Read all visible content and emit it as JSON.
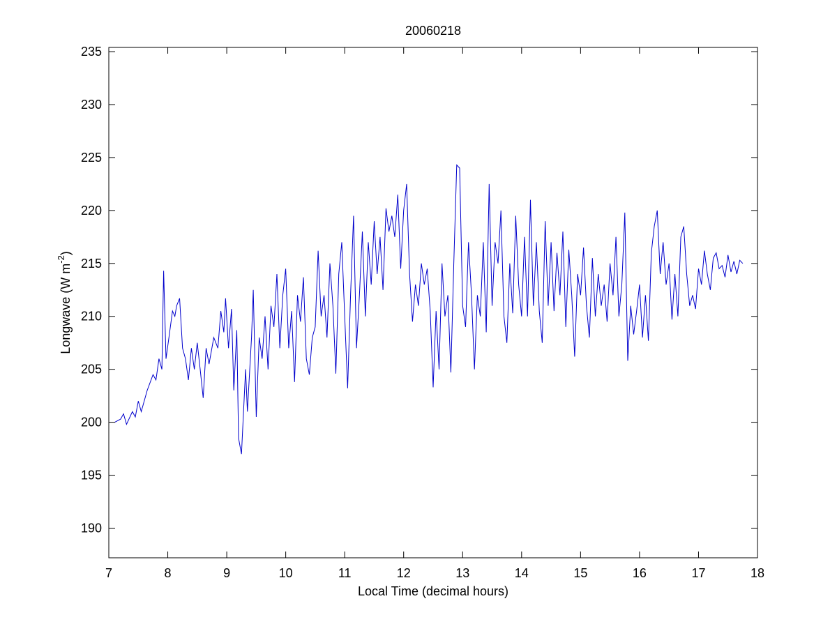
{
  "chart_data": {
    "type": "line",
    "title": "20060218",
    "xlabel": "Local Time (decimal hours)",
    "ylabel": {
      "text": "Longwave (W m",
      "superscript": "-2",
      "end": ")"
    },
    "xlim": [
      7,
      18
    ],
    "xticks": [
      7,
      8,
      9,
      10,
      11,
      12,
      13,
      14,
      15,
      16,
      17,
      18
    ],
    "ylim": [
      187.2,
      235.4
    ],
    "yticks": [
      190,
      195,
      200,
      205,
      210,
      215,
      220,
      225,
      230,
      235
    ],
    "box": true,
    "series": [
      {
        "color": "#0000cc",
        "x": [
          7.1,
          7.2,
          7.25,
          7.3,
          7.4,
          7.45,
          7.5,
          7.55,
          7.65,
          7.75,
          7.8,
          7.85,
          7.9,
          7.93,
          7.97,
          8.02,
          8.08,
          8.12,
          8.15,
          8.2,
          8.25,
          8.3,
          8.35,
          8.4,
          8.45,
          8.5,
          8.55,
          8.6,
          8.65,
          8.7,
          8.78,
          8.85,
          8.9,
          8.95,
          8.98,
          9.03,
          9.08,
          9.12,
          9.17,
          9.2,
          9.25,
          9.32,
          9.35,
          9.42,
          9.45,
          9.5,
          9.55,
          9.6,
          9.65,
          9.7,
          9.75,
          9.8,
          9.85,
          9.9,
          9.95,
          10.0,
          10.05,
          10.1,
          10.15,
          10.2,
          10.25,
          10.3,
          10.35,
          10.4,
          10.45,
          10.5,
          10.55,
          10.6,
          10.65,
          10.7,
          10.75,
          10.8,
          10.85,
          10.9,
          10.95,
          11.0,
          11.05,
          11.1,
          11.15,
          11.2,
          11.25,
          11.3,
          11.35,
          11.4,
          11.45,
          11.5,
          11.55,
          11.6,
          11.65,
          11.7,
          11.75,
          11.8,
          11.85,
          11.9,
          11.95,
          12.0,
          12.05,
          12.1,
          12.15,
          12.2,
          12.25,
          12.3,
          12.35,
          12.4,
          12.45,
          12.5,
          12.55,
          12.6,
          12.65,
          12.7,
          12.75,
          12.8,
          12.85,
          12.9,
          12.95,
          13.0,
          13.05,
          13.1,
          13.15,
          13.2,
          13.25,
          13.3,
          13.35,
          13.4,
          13.45,
          13.5,
          13.55,
          13.6,
          13.65,
          13.7,
          13.75,
          13.8,
          13.85,
          13.9,
          13.95,
          14.0,
          14.05,
          14.1,
          14.15,
          14.2,
          14.25,
          14.3,
          14.35,
          14.4,
          14.45,
          14.5,
          14.55,
          14.6,
          14.65,
          14.7,
          14.75,
          14.8,
          14.85,
          14.9,
          14.95,
          15.0,
          15.05,
          15.1,
          15.15,
          15.2,
          15.25,
          15.3,
          15.35,
          15.4,
          15.45,
          15.5,
          15.55,
          15.6,
          15.65,
          15.7,
          15.75,
          15.8,
          15.85,
          15.9,
          15.95,
          16.0,
          16.05,
          16.1,
          16.15,
          16.2,
          16.25,
          16.3,
          16.35,
          16.4,
          16.45,
          16.5,
          16.55,
          16.6,
          16.65,
          16.7,
          16.75,
          16.8,
          16.85,
          16.9,
          16.95,
          17.0,
          17.05,
          17.1,
          17.15,
          17.2,
          17.25,
          17.3,
          17.35,
          17.4,
          17.45,
          17.5,
          17.55,
          17.6,
          17.65,
          17.7,
          17.75
        ],
        "values": [
          200,
          200.3,
          200.8,
          199.8,
          201,
          200.5,
          202,
          201,
          203,
          204.5,
          204,
          206,
          205,
          214.3,
          206,
          208,
          210.5,
          210,
          211,
          211.7,
          207,
          206,
          204,
          207,
          205,
          207.5,
          205,
          202.3,
          207,
          205.5,
          208,
          207,
          210.5,
          208.5,
          211.7,
          207,
          210.7,
          203,
          208.7,
          198.5,
          197,
          205,
          201,
          208,
          212.5,
          200.5,
          208,
          206,
          210,
          205,
          211,
          209,
          214,
          207,
          212,
          214.5,
          207,
          210.5,
          203.8,
          212,
          209.5,
          213.7,
          206,
          204.5,
          208,
          209,
          216.2,
          210,
          212,
          208,
          215,
          211,
          204.6,
          214,
          217,
          210,
          203.2,
          212,
          219.5,
          207,
          212,
          218,
          210,
          217,
          213,
          219,
          214,
          217.5,
          212.5,
          220.2,
          218,
          219.5,
          217.5,
          221.5,
          214.5,
          220,
          222.5,
          214,
          209.5,
          213,
          211,
          215,
          213,
          214.5,
          210.5,
          203.3,
          210.5,
          205,
          215,
          210,
          212,
          204.7,
          215,
          224.3,
          224,
          211,
          209,
          217,
          212,
          205,
          212,
          210,
          217,
          208.5,
          222.5,
          211,
          217,
          215,
          220,
          210,
          207.5,
          215,
          210.3,
          219.5,
          213,
          210,
          217.5,
          210,
          221,
          211,
          217,
          210.5,
          207.5,
          219,
          211,
          217,
          210.5,
          216,
          212,
          218,
          209,
          216.3,
          212,
          206.2,
          214,
          212,
          216.5,
          211,
          208,
          215.5,
          210,
          214,
          211,
          213,
          209.5,
          215,
          212,
          217.5,
          210,
          213,
          219.8,
          205.8,
          211,
          208.3,
          210.5,
          213,
          208,
          212,
          207.7,
          216,
          218.5,
          220,
          214,
          217,
          213,
          215,
          209.7,
          214,
          210,
          217.5,
          218.5,
          214,
          211,
          212,
          210.7,
          214.5,
          213,
          216.2,
          214,
          212.5,
          215.5,
          216,
          214.5,
          214.8,
          213.7,
          215.8,
          214.2,
          215.2,
          214,
          215.3,
          215
        ]
      }
    ]
  }
}
